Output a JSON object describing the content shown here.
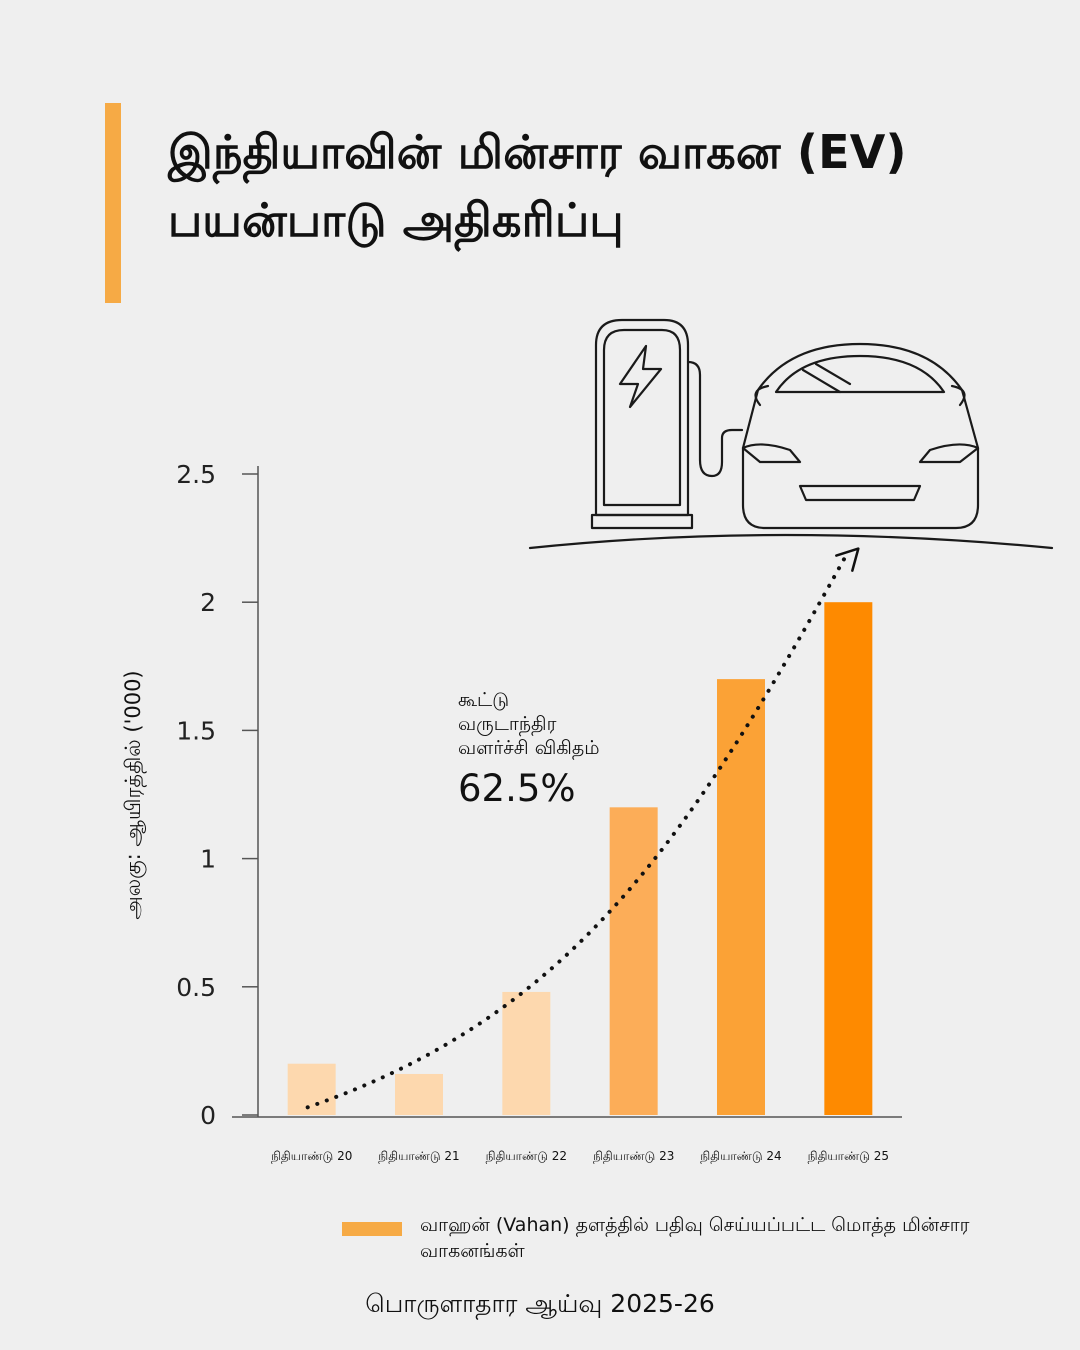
{
  "title": "இந்தியாவின் மின்சார வாகன (EV) பயன்பாடு அதிகரிப்பு",
  "colors": {
    "background": "#efefef",
    "accent": "#f6aa45",
    "bar_light": "#fdd8ae",
    "bar_mid": "#fcad58",
    "bar_dark": "#fe8a00"
  },
  "illustration": {
    "icons": [
      "ev-charger-icon",
      "lightning-bolt-icon",
      "electric-car-icon"
    ]
  },
  "chart_data": {
    "type": "bar",
    "categories": [
      "நிதியாண்டு 20",
      "நிதியாண்டு 21",
      "நிதியாண்டு 22",
      "நிதியாண்டு 23",
      "நிதியாண்டு 24",
      "நிதியாண்டு 25"
    ],
    "values": [
      0.2,
      0.16,
      0.48,
      1.2,
      1.7,
      2.0
    ],
    "bar_colors": [
      "#fdd8ae",
      "#fdd8ae",
      "#fdd8ae",
      "#fcad58",
      "#fba236",
      "#fe8a00"
    ],
    "ylabel": "அலகு: ஆயிரத்தில் ('000)",
    "xlabel": "",
    "ylim": [
      0,
      2.5
    ],
    "yticks": [
      "0",
      "0.5",
      "1",
      "1.5",
      "2",
      "2.5"
    ],
    "ytick_values": [
      0,
      0.5,
      1,
      1.5,
      2,
      2.5
    ],
    "trend_line": "dotted exponential curve with arrow",
    "grid": false,
    "legend": {
      "position": "bottom",
      "entries": [
        "வாஹன் (Vahan) தளத்தில் பதிவு செய்யப்பட்ட மொத்த மின்சார வாகனங்கள்"
      ]
    },
    "annotation": {
      "lines": [
        "கூட்டு",
        "வருடாந்திர",
        "வளர்ச்சி விகிதம்"
      ],
      "value": "62.5%"
    }
  },
  "source": "பொருளாதார ஆய்வு 2025-26"
}
